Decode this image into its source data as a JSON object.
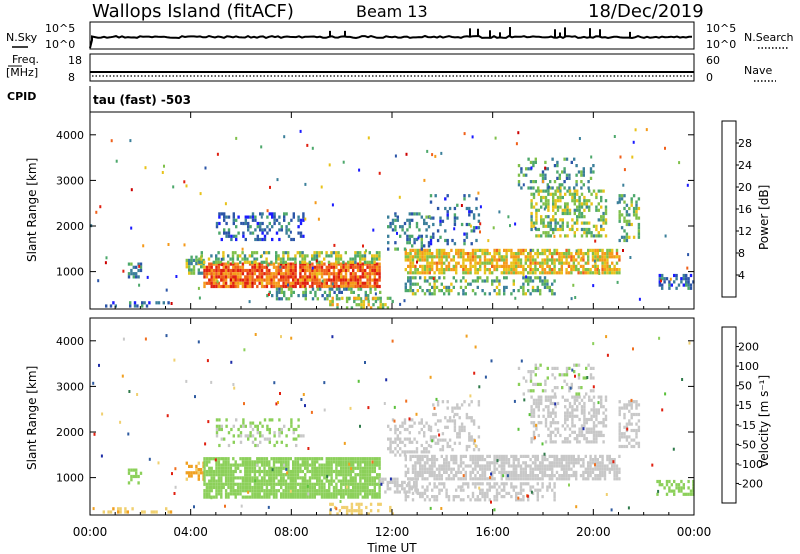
{
  "header": {
    "station": "Wallops Island (fitACF)",
    "beam": "Beam 13",
    "date": "18/Dec/2019"
  },
  "status_panels": {
    "nsky_label": "N.Sky",
    "nsearch_label": "N.Search",
    "noise_left_ticks": [
      "10^5",
      "10^0"
    ],
    "noise_right_ticks": [
      "10^5",
      "10^0"
    ],
    "freq_label": "Freq.",
    "freq_unit": "[MHz]",
    "freq_ticks": [
      "18",
      "8"
    ],
    "nave_label": "Nave",
    "nave_ticks": [
      "60",
      "0"
    ],
    "cpid_label": "CPID",
    "cpid_value": "tau (fast) -503"
  },
  "colors": {
    "power": [
      "#1a1aff",
      "#2b55a8",
      "#3b7f9a",
      "#4da86b",
      "#7fc04a",
      "#e8c31a",
      "#f59a1a",
      "#f0601a",
      "#e02010",
      "#cc0000"
    ],
    "velocity": [
      "#1e2ea8",
      "#2e5aa0",
      "#2f7a4a",
      "#5ac03a",
      "#8cd05a",
      "#c8c8c8",
      "#f0d070",
      "#f0a020",
      "#f07020",
      "#e02010"
    ]
  },
  "chart_data": [
    {
      "type": "heatmap",
      "title": "Power",
      "ylabel": "Slant Range [km]",
      "yticks": [
        "1000",
        "2000",
        "3000",
        "4000"
      ],
      "ylim": [
        180,
        4500
      ],
      "xlim": [
        0,
        24
      ],
      "colorbar_label": "Power [dB]",
      "colorbar_ticks": [
        "4",
        "8",
        "12",
        "16",
        "20",
        "24",
        "28"
      ],
      "clim": [
        0,
        32
      ],
      "regions": [
        {
          "t0": 1.5,
          "t1": 2.0,
          "r0": 850,
          "r1": 1200,
          "value": 8,
          "density": 0.55
        },
        {
          "t0": 0.5,
          "t1": 3.2,
          "r0": 250,
          "r1": 350,
          "value": 6,
          "density": 0.35
        },
        {
          "t0": 3.8,
          "t1": 4.5,
          "r0": 950,
          "r1": 1350,
          "value": 12,
          "density": 0.55
        },
        {
          "t0": 4.5,
          "t1": 11.5,
          "r0": 700,
          "r1": 1200,
          "value": 24,
          "density": 0.85
        },
        {
          "t0": 4.3,
          "t1": 11.5,
          "r0": 1200,
          "r1": 1450,
          "value": 14,
          "density": 0.5
        },
        {
          "t0": 7.0,
          "t1": 11.5,
          "r0": 380,
          "r1": 650,
          "value": 10,
          "density": 0.4
        },
        {
          "t0": 5.0,
          "t1": 8.5,
          "r0": 1700,
          "r1": 2300,
          "value": 6,
          "density": 0.35
        },
        {
          "t0": 9.5,
          "t1": 12.0,
          "r0": 200,
          "r1": 450,
          "value": 16,
          "density": 0.45
        },
        {
          "t0": 12.5,
          "t1": 21.0,
          "r0": 950,
          "r1": 1500,
          "value": 18,
          "density": 0.75
        },
        {
          "t0": 12.5,
          "t1": 18.5,
          "r0": 500,
          "r1": 900,
          "value": 12,
          "density": 0.45
        },
        {
          "t0": 11.8,
          "t1": 13.5,
          "r0": 1500,
          "r1": 2300,
          "value": 8,
          "density": 0.35
        },
        {
          "t0": 13.5,
          "t1": 15.5,
          "r0": 1600,
          "r1": 2700,
          "value": 7,
          "density": 0.25
        },
        {
          "t0": 17.5,
          "t1": 20.5,
          "r0": 1800,
          "r1": 2800,
          "value": 14,
          "density": 0.5
        },
        {
          "t0": 17.0,
          "t1": 20.0,
          "r0": 2800,
          "r1": 3500,
          "value": 10,
          "density": 0.3
        },
        {
          "t0": 21.0,
          "t1": 21.8,
          "r0": 1700,
          "r1": 2700,
          "value": 12,
          "density": 0.5
        },
        {
          "t0": 22.5,
          "t1": 24.0,
          "r0": 650,
          "r1": 950,
          "value": 6,
          "density": 0.45
        }
      ]
    },
    {
      "type": "heatmap",
      "title": "Velocity",
      "ylabel": "Slant Range [km]",
      "xlabel": "Time UT",
      "yticks": [
        "1000",
        "2000",
        "3000",
        "4000"
      ],
      "ylim": [
        180,
        4500
      ],
      "xlim": [
        0,
        24
      ],
      "xticks": [
        "00:00",
        "04:00",
        "08:00",
        "12:00",
        "16:00",
        "20:00",
        "00:00"
      ],
      "colorbar_label": "Velocity [m s⁻¹]",
      "colorbar_ticks": [
        "200",
        "100",
        "50",
        "15",
        "-15",
        "-50",
        "-100",
        "-200"
      ],
      "regions": [
        {
          "t0": 1.5,
          "t1": 2.0,
          "r0": 850,
          "r1": 1200,
          "value": 40,
          "density": 0.55
        },
        {
          "t0": 0.5,
          "t1": 3.2,
          "r0": 250,
          "r1": 350,
          "value": -40,
          "density": 0.3
        },
        {
          "t0": 3.8,
          "t1": 4.5,
          "r0": 950,
          "r1": 1350,
          "value": -60,
          "density": 0.5
        },
        {
          "t0": 4.5,
          "t1": 11.5,
          "r0": 600,
          "r1": 1450,
          "value": 35,
          "density": 0.85
        },
        {
          "t0": 9.5,
          "t1": 12.0,
          "r0": 200,
          "r1": 450,
          "value": -30,
          "density": 0.4
        },
        {
          "t0": 5.0,
          "t1": 8.5,
          "r0": 1700,
          "r1": 2300,
          "value": 20,
          "density": 0.3
        },
        {
          "t0": 11.5,
          "t1": 13.0,
          "r0": 700,
          "r1": 1000,
          "value": 0,
          "density": 0.6
        },
        {
          "t0": 12.5,
          "t1": 21.0,
          "r0": 950,
          "r1": 1500,
          "value": 0,
          "density": 0.7
        },
        {
          "t0": 12.5,
          "t1": 18.5,
          "r0": 500,
          "r1": 900,
          "value": 0,
          "density": 0.45
        },
        {
          "t0": 11.8,
          "t1": 13.5,
          "r0": 1500,
          "r1": 2300,
          "value": 0,
          "density": 0.35
        },
        {
          "t0": 13.5,
          "t1": 15.5,
          "r0": 1600,
          "r1": 2700,
          "value": 0,
          "density": 0.25
        },
        {
          "t0": 17.5,
          "t1": 20.5,
          "r0": 1800,
          "r1": 2800,
          "value": 0,
          "density": 0.5
        },
        {
          "t0": 17.0,
          "t1": 20.0,
          "r0": 2800,
          "r1": 3500,
          "value": 10,
          "density": 0.25
        },
        {
          "t0": 21.0,
          "t1": 21.8,
          "r0": 1700,
          "r1": 2700,
          "value": 0,
          "density": 0.5
        },
        {
          "t0": 22.5,
          "t1": 24.0,
          "r0": 650,
          "r1": 950,
          "value": 35,
          "density": 0.45
        }
      ]
    }
  ]
}
